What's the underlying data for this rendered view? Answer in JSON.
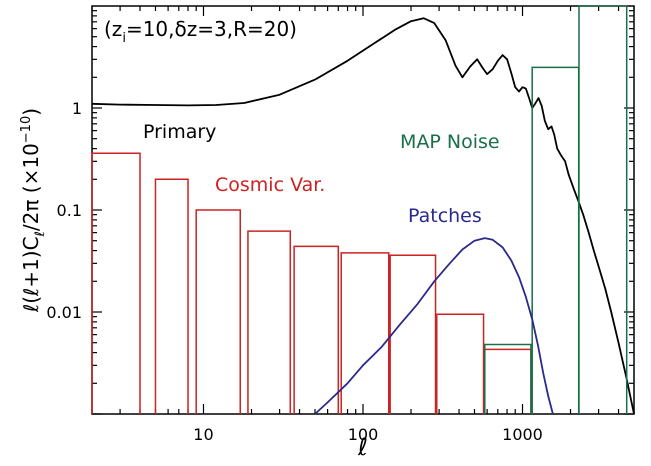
{
  "chart_data": {
    "type": "line",
    "title": "(z_i=10, δz=3, R=20)",
    "title_parts": {
      "z_label": "(z",
      "z_sub": "i",
      "rest": "=10,δz=3,R=20)"
    },
    "xlabel": "ℓ",
    "ylabel_parts": {
      "a": "ℓ(ℓ+1)C",
      "sub": "ℓ",
      "b": "/2π  (×10",
      "sup": "−10",
      "c": ")"
    },
    "xscale": "log",
    "yscale": "log",
    "xlim": [
      2,
      5000
    ],
    "ylim": [
      0.001,
      10
    ],
    "xticks": [
      {
        "value": 10,
        "label": "10"
      },
      {
        "value": 100,
        "label": "100"
      },
      {
        "value": 1000,
        "label": "1000"
      }
    ],
    "yticks": [
      {
        "value": 0.01,
        "label": "0.01"
      },
      {
        "value": 0.1,
        "label": "0.1"
      },
      {
        "value": 1,
        "label": "1"
      }
    ],
    "series": [
      {
        "name": "Primary",
        "kind": "line",
        "color": "#000000",
        "points": [
          [
            2,
            1.1
          ],
          [
            3,
            1.08
          ],
          [
            5,
            1.07
          ],
          [
            8,
            1.06
          ],
          [
            12,
            1.07
          ],
          [
            18,
            1.12
          ],
          [
            30,
            1.35
          ],
          [
            50,
            1.9
          ],
          [
            80,
            2.9
          ],
          [
            120,
            4.4
          ],
          [
            160,
            5.9
          ],
          [
            200,
            7.1
          ],
          [
            240,
            7.6
          ],
          [
            280,
            6.8
          ],
          [
            330,
            4.6
          ],
          [
            380,
            2.6
          ],
          [
            420,
            2.0
          ],
          [
            470,
            2.55
          ],
          [
            520,
            3.0
          ],
          [
            560,
            2.5
          ],
          [
            600,
            2.15
          ],
          [
            650,
            2.4
          ],
          [
            700,
            2.9
          ],
          [
            750,
            3.3
          ],
          [
            800,
            3.0
          ],
          [
            850,
            2.2
          ],
          [
            900,
            1.6
          ],
          [
            950,
            1.45
          ],
          [
            1000,
            1.6
          ],
          [
            1050,
            1.55
          ],
          [
            1100,
            1.25
          ],
          [
            1150,
            1.0
          ],
          [
            1200,
            1.1
          ],
          [
            1260,
            1.25
          ],
          [
            1320,
            1.05
          ],
          [
            1380,
            0.75
          ],
          [
            1450,
            0.62
          ],
          [
            1520,
            0.66
          ],
          [
            1580,
            0.55
          ],
          [
            1650,
            0.4
          ],
          [
            1750,
            0.34
          ],
          [
            1850,
            0.3
          ],
          [
            1950,
            0.22
          ],
          [
            2100,
            0.16
          ],
          [
            2250,
            0.12
          ],
          [
            2400,
            0.09
          ],
          [
            2600,
            0.06
          ],
          [
            2800,
            0.04
          ],
          [
            3000,
            0.028
          ],
          [
            3300,
            0.017
          ],
          [
            3600,
            0.01
          ],
          [
            4000,
            0.005
          ],
          [
            4500,
            0.0022
          ],
          [
            5000,
            0.001
          ]
        ]
      },
      {
        "name": "Cosmic Var.",
        "kind": "bins",
        "color": "#cc2222",
        "bins": [
          {
            "x0": 2,
            "x1": 4,
            "y": 0.36
          },
          {
            "x0": 5,
            "x1": 8,
            "y": 0.2
          },
          {
            "x0": 9,
            "x1": 17,
            "y": 0.1
          },
          {
            "x0": 19,
            "x1": 35,
            "y": 0.062
          },
          {
            "x0": 37,
            "x1": 70,
            "y": 0.044
          },
          {
            "x0": 73,
            "x1": 145,
            "y": 0.038
          },
          {
            "x0": 148,
            "x1": 285,
            "y": 0.036
          },
          {
            "x0": 290,
            "x1": 570,
            "y": 0.0095
          },
          {
            "x0": 580,
            "x1": 1130,
            "y": 0.0043
          }
        ]
      },
      {
        "name": "MAP Noise",
        "kind": "bins",
        "color": "#1a6e48",
        "bins": [
          {
            "x0": 580,
            "x1": 1130,
            "y": 0.0048
          },
          {
            "x0": 1150,
            "x1": 2250,
            "y": 2.5
          },
          {
            "x0": 2260,
            "x1": 4500,
            "y": 10
          }
        ]
      },
      {
        "name": "Patches",
        "kind": "line",
        "color": "#2a2a8a",
        "points": [
          [
            50,
            0.001
          ],
          [
            60,
            0.0013
          ],
          [
            80,
            0.002
          ],
          [
            100,
            0.003
          ],
          [
            130,
            0.0045
          ],
          [
            170,
            0.0075
          ],
          [
            220,
            0.012
          ],
          [
            280,
            0.02
          ],
          [
            350,
            0.03
          ],
          [
            420,
            0.041
          ],
          [
            500,
            0.05
          ],
          [
            580,
            0.053
          ],
          [
            650,
            0.051
          ],
          [
            750,
            0.043
          ],
          [
            850,
            0.032
          ],
          [
            950,
            0.022
          ],
          [
            1050,
            0.014
          ],
          [
            1150,
            0.0085
          ],
          [
            1250,
            0.0047
          ],
          [
            1350,
            0.0025
          ],
          [
            1450,
            0.0015
          ],
          [
            1550,
            0.001
          ]
        ]
      }
    ],
    "annotations": [
      {
        "text": "Primary",
        "color": "#000000"
      },
      {
        "text": "Cosmic Var.",
        "color": "#cc2222"
      },
      {
        "text": "MAP Noise",
        "color": "#1a6e48"
      },
      {
        "text": "Patches",
        "color": "#2a2a8a"
      }
    ]
  }
}
